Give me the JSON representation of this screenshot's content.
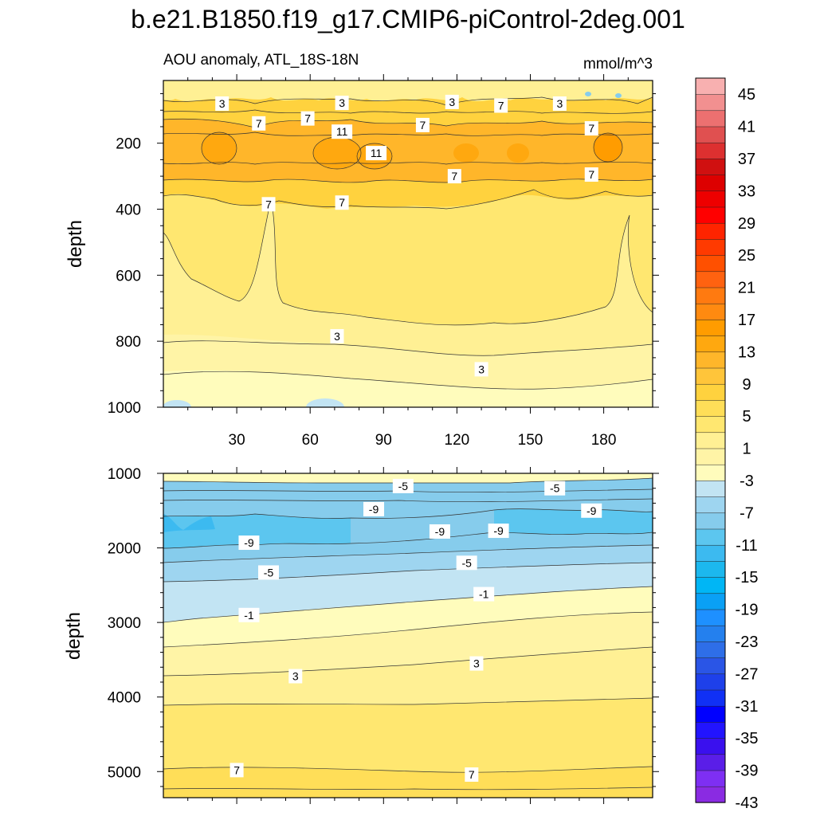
{
  "title": "b.e21.B1850.f19_g17.CMIP6-piControl-2deg.001",
  "chart_data": [
    {
      "type": "contour",
      "panel": "upper",
      "subtitle_left": "AOU anomaly, ATL_18S-18N",
      "subtitle_right": "mmol/m^3",
      "xlabel": "",
      "ylabel": "depth",
      "xlim": [
        0,
        200
      ],
      "ylim": [
        1000,
        10
      ],
      "x_ticks": [
        "30",
        "60",
        "90",
        "120",
        "150",
        "180"
      ],
      "x_tick_values": [
        30,
        60,
        90,
        120,
        150,
        180
      ],
      "y_ticks": [
        "200",
        "400",
        "600",
        "800",
        "1000"
      ],
      "y_tick_values": [
        200,
        400,
        600,
        800,
        1000
      ],
      "contour_labels": [
        {
          "text": "3",
          "x": 24,
          "y": 80
        },
        {
          "text": "3",
          "x": 73,
          "y": 78
        },
        {
          "text": "3",
          "x": 118,
          "y": 75
        },
        {
          "text": "7",
          "x": 138,
          "y": 86
        },
        {
          "text": "3",
          "x": 162,
          "y": 80
        },
        {
          "text": "7",
          "x": 39,
          "y": 140
        },
        {
          "text": "7",
          "x": 59,
          "y": 125
        },
        {
          "text": "11",
          "x": 73,
          "y": 165
        },
        {
          "text": "7",
          "x": 106,
          "y": 145
        },
        {
          "text": "7",
          "x": 175,
          "y": 155
        },
        {
          "text": "11",
          "x": 87,
          "y": 230
        },
        {
          "text": "7",
          "x": 119,
          "y": 300
        },
        {
          "text": "7",
          "x": 175,
          "y": 295
        },
        {
          "text": "7",
          "x": 43,
          "y": 385
        },
        {
          "text": "7",
          "x": 73,
          "y": 380
        },
        {
          "text": "3",
          "x": 71,
          "y": 785
        },
        {
          "text": "3",
          "x": 130,
          "y": 885
        }
      ]
    },
    {
      "type": "contour",
      "panel": "lower",
      "xlabel": "",
      "ylabel": "depth",
      "xlim": [
        0,
        200
      ],
      "ylim": [
        5350,
        1000
      ],
      "y_ticks": [
        "1000",
        "2000",
        "3000",
        "4000",
        "5000"
      ],
      "y_tick_values": [
        1000,
        2000,
        3000,
        4000,
        5000
      ],
      "contour_labels": [
        {
          "text": "-5",
          "x": 98,
          "y": 1170
        },
        {
          "text": "-5",
          "x": 160,
          "y": 1200
        },
        {
          "text": "-9",
          "x": 86,
          "y": 1480
        },
        {
          "text": "-9",
          "x": 175,
          "y": 1500
        },
        {
          "text": "-9",
          "x": 113,
          "y": 1780
        },
        {
          "text": "-9",
          "x": 137,
          "y": 1770
        },
        {
          "text": "-9",
          "x": 35,
          "y": 1930
        },
        {
          "text": "-5",
          "x": 43,
          "y": 2330
        },
        {
          "text": "-5",
          "x": 124,
          "y": 2200
        },
        {
          "text": "-1",
          "x": 131,
          "y": 2620
        },
        {
          "text": "-1",
          "x": 35,
          "y": 2900
        },
        {
          "text": "3",
          "x": 54,
          "y": 3720
        },
        {
          "text": "3",
          "x": 128,
          "y": 3550
        },
        {
          "text": "7",
          "x": 30,
          "y": 4980
        },
        {
          "text": "7",
          "x": 126,
          "y": 5040
        }
      ]
    }
  ],
  "colorbar": {
    "labels": [
      "45",
      "41",
      "37",
      "33",
      "29",
      "25",
      "21",
      "17",
      "13",
      "9",
      "5",
      "1",
      "-3",
      "-7",
      "-11",
      "-15",
      "-19",
      "-23",
      "-27",
      "-31",
      "-35",
      "-39",
      "-43"
    ],
    "colors": [
      "#8a2be2",
      "#7e2ff3",
      "#5a1ee8",
      "#3a10ee",
      "#2214ff",
      "#0000ff",
      "#1030f5",
      "#1e40ea",
      "#2a55e6",
      "#2e6ee8",
      "#2480ee",
      "#1e90ff",
      "#0aa0f5",
      "#00b6f5",
      "#1cb8ee",
      "#3cbaf0",
      "#5cc6ef",
      "#86ccec",
      "#9ed5f0",
      "#c2e4f3",
      "#fffcbc",
      "#fff4a6",
      "#fff094",
      "#ffe770",
      "#ffde58",
      "#ffd23e",
      "#ffc53a",
      "#ffb62a",
      "#ffa80f",
      "#ff9c00",
      "#ff8a10",
      "#ff7a10",
      "#ff6210",
      "#ff5000",
      "#ff3a00",
      "#ff2400",
      "#ff0000",
      "#ee0000",
      "#dd0000",
      "#d01010",
      "#dd3030",
      "#e05050",
      "#ec7070",
      "#f29090",
      "#f8b0b0"
    ]
  }
}
